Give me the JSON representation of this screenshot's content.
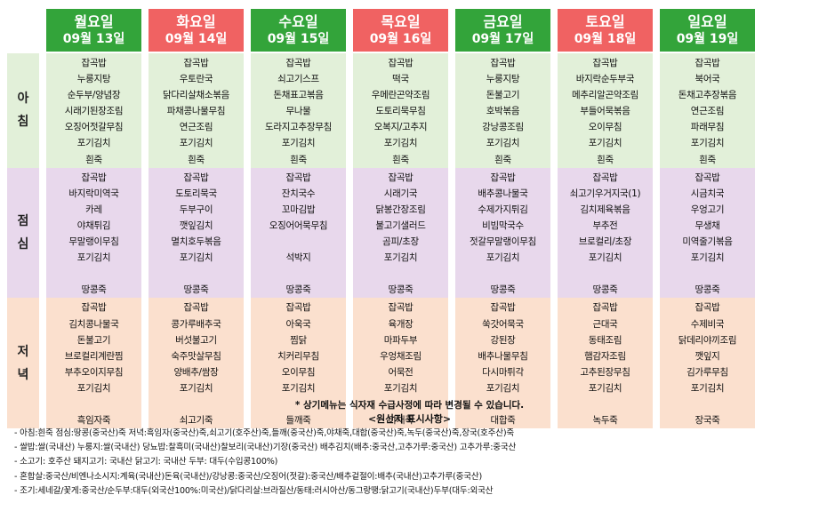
{
  "days": [
    {
      "name": "월요일",
      "date": "09월 13일",
      "color": "green"
    },
    {
      "name": "화요일",
      "date": "09월 14일",
      "color": "red"
    },
    {
      "name": "수요일",
      "date": "09월 15일",
      "color": "green"
    },
    {
      "name": "목요일",
      "date": "09월 16일",
      "color": "red"
    },
    {
      "name": "금요일",
      "date": "09월 17일",
      "color": "green"
    },
    {
      "name": "토요일",
      "date": "09월 18일",
      "color": "red"
    },
    {
      "name": "일요일",
      "date": "09월 19일",
      "color": "green"
    }
  ],
  "meals": [
    {
      "label": [
        "아",
        "침"
      ],
      "items": [
        [
          "잡곡밥",
          "누룽지탕",
          "순두부/양념장",
          "시래기된장조림",
          "오징어젓갈무침",
          "포기김치",
          "흰죽"
        ],
        [
          "잡곡밥",
          "우토란국",
          "닭다리살채소볶음",
          "파채콩나물무침",
          "연근조림",
          "포기김치",
          "흰죽"
        ],
        [
          "잡곡밥",
          "쇠고기스프",
          "돈채표고볶음",
          "무나물",
          "도라지고추장무침",
          "포기김치",
          "흰죽"
        ],
        [
          "잡곡밥",
          "떡국",
          "우메란곤약조림",
          "도토리묵무침",
          "오복지/고추지",
          "포기김치",
          "흰죽"
        ],
        [
          "잡곡밥",
          "누룽지탕",
          "돈불고기",
          "호박볶음",
          "강낭콩조림",
          "포기김치",
          "흰죽"
        ],
        [
          "잡곡밥",
          "바지락순두부국",
          "메추리알곤약조림",
          "부들어묵볶음",
          "오이무침",
          "포기김치",
          "흰죽"
        ],
        [
          "잡곡밥",
          "북어국",
          "돈채고추장볶음",
          "연근조림",
          "파래무침",
          "포기김치",
          "흰죽"
        ]
      ]
    },
    {
      "label": [
        "점",
        "심"
      ],
      "items": [
        [
          "잡곡밥",
          "바지락미역국",
          "카레",
          "야채튀김",
          "무말랭이무침",
          "포기김치",
          "",
          "땅콩죽"
        ],
        [
          "잡곡밥",
          "도토리묵국",
          "두부구이",
          "깻잎김치",
          "멸치호두볶음",
          "포기김치",
          "",
          "땅콩죽"
        ],
        [
          "잡곡밥",
          "잔치국수",
          "꼬마김밥",
          "오징어어묵무침",
          "",
          "석박지",
          "",
          "땅콩죽"
        ],
        [
          "잡곡밥",
          "시래기국",
          "닭봉간장조림",
          "불고기샐러드",
          "곰피/초장",
          "포기김치",
          "",
          "땅콩죽"
        ],
        [
          "잡곡밥",
          "배추콩나물국",
          "수제가지튀김",
          "비빔막국수",
          "젓갈무말랭이무침",
          "포기김치",
          "",
          "땅콩죽"
        ],
        [
          "잡곡밥",
          "쇠고기우거지국(1)",
          "김치제육볶음",
          "부추전",
          "브로컬리/초장",
          "포기김치",
          "",
          "땅콩죽"
        ],
        [
          "잡곡밥",
          "시금치국",
          "우엉고기",
          "무생채",
          "미역줄기볶음",
          "포기김치",
          "",
          "땅콩죽"
        ]
      ]
    },
    {
      "label": [
        "저",
        "녁"
      ],
      "items": [
        [
          "잡곡밥",
          "김치콩나물국",
          "돈불고기",
          "브로컬리계란찜",
          "부추오이지무침",
          "포기김치",
          "",
          "흑임자죽"
        ],
        [
          "잡곡밥",
          "콩가루배추국",
          "버섯불고기",
          "숙주맛살무침",
          "양배추/쌈장",
          "포기김치",
          "",
          "쇠고기죽"
        ],
        [
          "잡곡밥",
          "아욱국",
          "찜닭",
          "치커리무침",
          "오이무침",
          "포기김치",
          "",
          "들깨죽"
        ],
        [
          "잡곡밥",
          "육개장",
          "마파두부",
          "우엉채조림",
          "어묵전",
          "포기김치",
          "",
          "야채죽"
        ],
        [
          "잡곡밥",
          "쑥갓어묵국",
          "강된장",
          "배추나물무침",
          "다시마튀각",
          "포기김치",
          "",
          "대합죽"
        ],
        [
          "잡곡밥",
          "근대국",
          "동태조림",
          "햄감자조림",
          "고추된장무침",
          "포기김치",
          "",
          "녹두죽"
        ],
        [
          "잡곡밥",
          "수제비국",
          "닭데리야끼조림",
          "깻잎지",
          "김가루무침",
          "포기김치",
          "",
          "장국죽"
        ]
      ]
    }
  ],
  "notice": "* 상기메뉴는 식자재 수급사정에 따라 변경될 수 있습니다.",
  "origin_title": "<원산지 표시사항>",
  "origin_lines": [
    "- 아침:흰죽 점심:땅콩(중국산)죽 저녁:흑임자(중국산)죽,쇠고기(호주산)죽,들깨(중국산)죽,야채죽,대합(중국산)죽,녹두(중국산)죽,장국(호주산)죽",
    "- 쌀밥:쌀(국내산) 누룽지:쌀(국내산) 당뇨밥:찰흑미(국내산)찰보리(국내산)기장(중국산) 배추김치(배추:중국산,고추가루:중국산) 고추가루:중국산",
    "- 소고기: 호주산 돼지고기: 국내산 닭고기: 국내산 두부: 대두(수입콩100%)",
    "- 혼합살:중국산/비엔나소시지:계육(국내산)돈육(국내산)/강낭콩:중국산/오징어(젓갈):중국산/배추겉절이:배추(국내산)고추가루(중국산)",
    "- 조기:세네갈/꽃게:중국산/순두부:대두(외국산100%:미국산)/닭다리살:브라질산/동태:러시아산/동그랑땡:닭고기(국내산)두부(대두:외국산"
  ],
  "colors": {
    "header_green": "#33a43a",
    "header_red": "#f06262",
    "breakfast_bg": "#e2f0d9",
    "lunch_bg": "#e8d8ec",
    "dinner_bg": "#fbe0ce"
  }
}
